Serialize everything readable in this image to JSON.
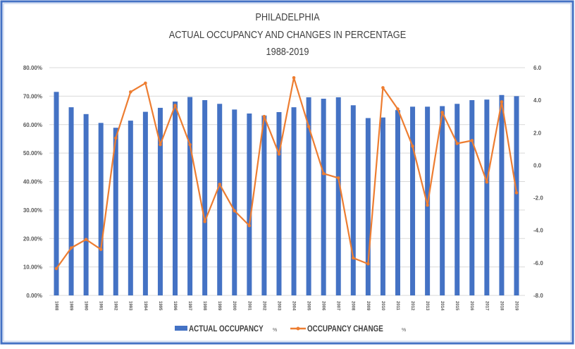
{
  "chart_data": {
    "type": "bar+line",
    "title": [
      "PHILADELPHIA",
      "ACTUAL OCCUPANCY AND CHANGES IN PERCENTAGE",
      "1988-2019"
    ],
    "categories": [
      "1988",
      "1989",
      "1990",
      "1991",
      "1992",
      "1993",
      "1994",
      "1995",
      "1996",
      "1997",
      "1998",
      "1999",
      "2000",
      "2001",
      "2002",
      "2003",
      "2004",
      "2005",
      "2006",
      "2007",
      "2008",
      "2009",
      "2010",
      "2011",
      "2012",
      "2013",
      "2014",
      "2015",
      "2016",
      "2017",
      "2018",
      "2019"
    ],
    "series": [
      {
        "name": "ACTUAL OCCUPANCY",
        "unit": "%",
        "type": "bar",
        "axis": "left",
        "color": "#4472c4",
        "values": [
          71.5,
          66.1,
          63.7,
          60.6,
          58.9,
          61.4,
          64.5,
          65.9,
          68.1,
          69.7,
          68.6,
          67.3,
          65.3,
          63.9,
          63.2,
          64.4,
          66.1,
          69.6,
          69.1,
          69.6,
          66.8,
          62.3,
          62.5,
          65.1,
          66.3,
          66.3,
          66.5,
          67.3,
          68.6,
          68.8,
          70.4,
          70.0
        ]
      },
      {
        "name": "OCCUPANCY CHANGE",
        "unit": "%",
        "type": "line",
        "axis": "right",
        "color": "#ed7d31",
        "values": [
          -6.35,
          -5.08,
          -4.56,
          -5.17,
          1.67,
          4.51,
          5.05,
          1.27,
          3.68,
          1.27,
          -3.46,
          -1.17,
          -2.8,
          -3.71,
          3.0,
          0.69,
          5.38,
          2.38,
          -0.51,
          -0.78,
          -5.7,
          -6.06,
          4.77,
          3.46,
          1.17,
          -2.45,
          3.25,
          1.34,
          1.52,
          -1.03,
          3.9,
          -1.69
        ]
      }
    ],
    "y_left": {
      "range": [
        0,
        80
      ],
      "ticks": [
        "0.00%",
        "10.00%",
        "20.00%",
        "30.00%",
        "40.00%",
        "50.00%",
        "60.00%",
        "70.00%",
        "80.00%"
      ]
    },
    "y_right": {
      "range": [
        -8,
        6
      ],
      "ticks": [
        "-8.0",
        "-6.0",
        "-4.0",
        "-2.0",
        "0.0",
        "2.0",
        "4.0",
        "6.0"
      ]
    },
    "grid": true,
    "legend_position": "bottom"
  }
}
